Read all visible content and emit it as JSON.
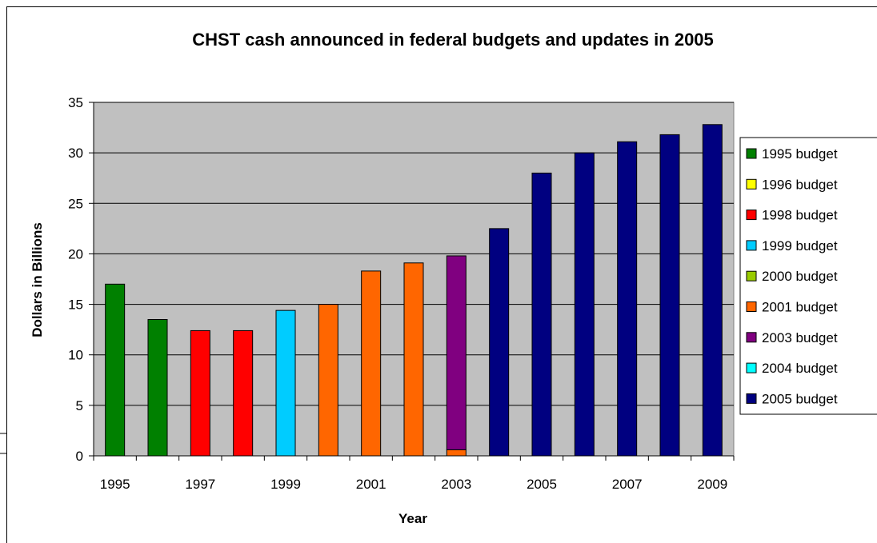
{
  "chart_data": {
    "type": "bar",
    "title": "CHST cash announced in federal budgets and updates in 2005",
    "xlabel": "Year",
    "ylabel": "Dollars in Billions",
    "ylim": [
      0,
      35
    ],
    "yticks": [
      0,
      5,
      10,
      15,
      20,
      25,
      30,
      35
    ],
    "categories": [
      "1995",
      "1996",
      "1997",
      "1998",
      "1999",
      "2000",
      "2001",
      "2002",
      "2003",
      "2004",
      "2005",
      "2006",
      "2007",
      "2008",
      "2009"
    ],
    "x_tick_labels": [
      "1995",
      "1997",
      "1999",
      "2001",
      "2003",
      "2005",
      "2007",
      "2009"
    ],
    "stacked": true,
    "grid": true,
    "plot_background": "#c0c0c0",
    "legend_position": "right",
    "series": [
      {
        "name": "1995 budget",
        "color": "#008000",
        "values": [
          17.0,
          13.5,
          0,
          0,
          0,
          0,
          0,
          0,
          0,
          0,
          0,
          0,
          0,
          0,
          0
        ]
      },
      {
        "name": "1996 budget",
        "color": "#ffff00",
        "values": [
          0,
          0,
          0,
          0,
          0,
          0,
          0,
          0,
          0,
          0,
          0,
          0,
          0,
          0,
          0
        ]
      },
      {
        "name": "1998 budget",
        "color": "#ff0000",
        "values": [
          0,
          0,
          12.4,
          12.4,
          0,
          0,
          0,
          0,
          0,
          0,
          0,
          0,
          0,
          0,
          0
        ]
      },
      {
        "name": "1999 budget",
        "color": "#00ccff",
        "values": [
          0,
          0,
          0,
          0,
          14.4,
          0,
          0,
          0,
          0,
          0,
          0,
          0,
          0,
          0,
          0
        ]
      },
      {
        "name": "2000 budget",
        "color": "#99cc00",
        "values": [
          0,
          0,
          0,
          0,
          0,
          0,
          0,
          0,
          0,
          0,
          0,
          0,
          0,
          0,
          0
        ]
      },
      {
        "name": "2001 budget",
        "color": "#ff6600",
        "values": [
          0,
          0,
          0,
          0,
          0,
          15.0,
          18.3,
          19.1,
          0.6,
          0,
          0,
          0,
          0,
          0,
          0
        ]
      },
      {
        "name": "2003 budget",
        "color": "#800080",
        "values": [
          0,
          0,
          0,
          0,
          0,
          0,
          0,
          0,
          19.2,
          0,
          0,
          0,
          0,
          0,
          0
        ]
      },
      {
        "name": "2004 budget",
        "color": "#00ffff",
        "values": [
          0,
          0,
          0,
          0,
          0,
          0,
          0,
          0,
          0,
          0,
          0,
          0,
          0,
          0,
          0
        ]
      },
      {
        "name": "2005 budget",
        "color": "#000080",
        "values": [
          0,
          0,
          0,
          0,
          0,
          0,
          0,
          0,
          0,
          22.5,
          28.0,
          30.0,
          31.1,
          31.8,
          32.8
        ]
      }
    ]
  }
}
